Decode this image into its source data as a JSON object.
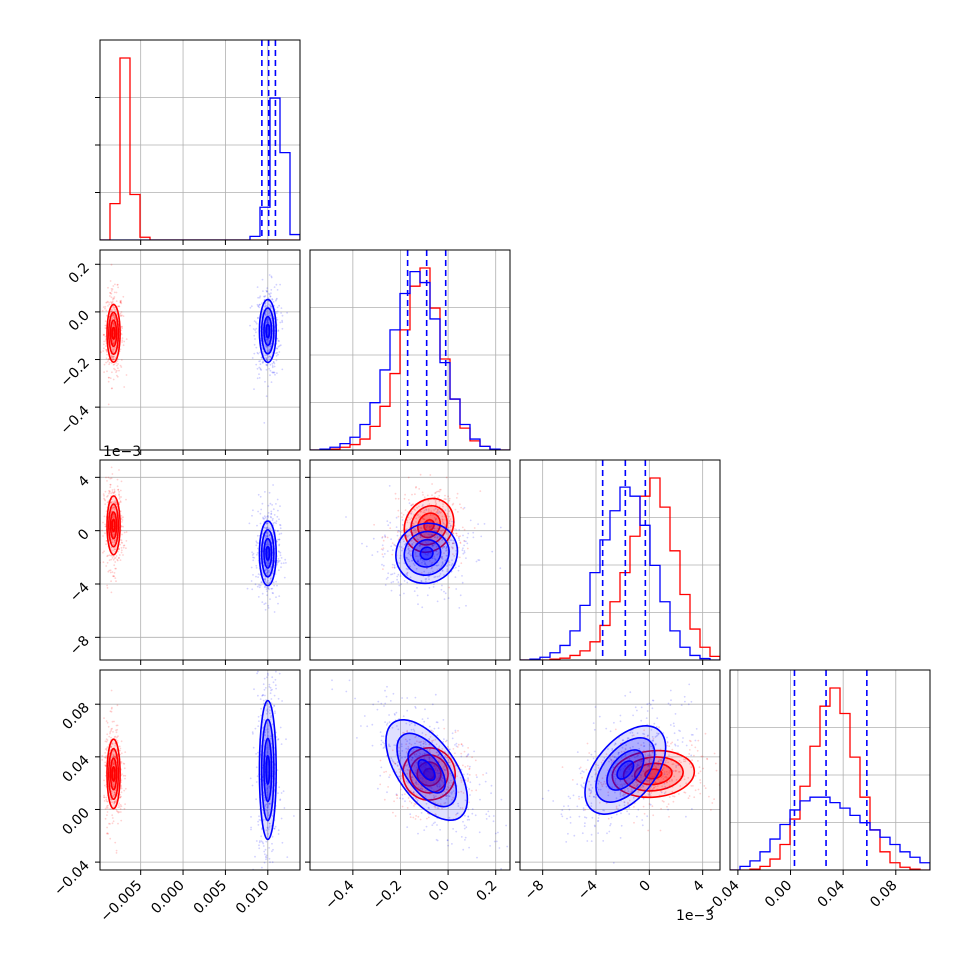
{
  "colors": {
    "red": "#ff0000",
    "blue": "#0000ff",
    "grid": "#b0b0b0"
  },
  "chart_data": {
    "type": "corner",
    "params": [
      {
        "range": [
          -0.0098,
          0.0138
        ],
        "ticks": [
          -0.005,
          0.0,
          0.005,
          0.01
        ],
        "tick_labels": [
          "−0.005",
          "0.000",
          "0.005",
          "0.010"
        ],
        "offset_text": ""
      },
      {
        "range": [
          -0.58,
          0.26
        ],
        "ticks": [
          -0.4,
          -0.2,
          0.0,
          0.2
        ],
        "tick_labels": [
          "−0.4",
          "−0.2",
          "0.0",
          "0.2"
        ],
        "offset_text": ""
      },
      {
        "range": [
          -9.7,
          5.3
        ],
        "ticks": [
          -8,
          -4,
          0,
          4
        ],
        "tick_labels": [
          "−8",
          "−4",
          "0",
          "4"
        ],
        "offset_text": "1e−3"
      },
      {
        "range": [
          -0.046,
          0.106
        ],
        "ticks": [
          -0.04,
          0.0,
          0.04,
          0.08
        ],
        "tick_labels": [
          "−0.04",
          "0.00",
          "0.04",
          "0.08"
        ],
        "offset_text": ""
      }
    ],
    "series": [
      {
        "color": "red",
        "hist": [
          [
            0.0,
            0.2,
            1.0,
            0.25,
            0.015,
            0.0,
            0.0,
            0.0,
            0.0,
            0.0,
            0.0,
            0.0,
            0.0,
            0.0,
            0.0,
            0.0,
            0.0,
            0.0,
            0.0,
            0.0
          ],
          [
            0.0,
            0.0,
            0.005,
            0.015,
            0.03,
            0.06,
            0.13,
            0.24,
            0.42,
            0.66,
            0.9,
            1.0,
            0.78,
            0.5,
            0.28,
            0.12,
            0.05,
            0.02,
            0.005,
            0.0
          ],
          [
            0.0,
            0.0,
            0.0,
            0.005,
            0.01,
            0.025,
            0.05,
            0.1,
            0.19,
            0.32,
            0.48,
            0.68,
            0.9,
            1.0,
            0.84,
            0.6,
            0.36,
            0.17,
            0.07,
            0.02
          ],
          [
            0.0,
            0.0,
            0.005,
            0.02,
            0.06,
            0.14,
            0.28,
            0.46,
            0.68,
            0.9,
            1.0,
            0.86,
            0.62,
            0.4,
            0.22,
            0.1,
            0.04,
            0.015,
            0.005,
            0.0
          ]
        ]
      },
      {
        "color": "blue",
        "hist": [
          [
            0.0,
            0.0,
            0.0,
            0.0,
            0.0,
            0.0,
            0.0,
            0.0,
            0.0,
            0.0,
            0.0,
            0.0,
            0.0,
            0.0,
            0.0,
            0.02,
            0.18,
            0.78,
            0.48,
            0.03
          ],
          [
            0.0,
            0.005,
            0.015,
            0.035,
            0.07,
            0.14,
            0.26,
            0.44,
            0.66,
            0.86,
            0.98,
            0.92,
            0.72,
            0.48,
            0.28,
            0.14,
            0.06,
            0.02,
            0.005,
            0.0
          ],
          [
            0.0,
            0.005,
            0.015,
            0.04,
            0.08,
            0.16,
            0.3,
            0.48,
            0.66,
            0.82,
            0.95,
            0.9,
            0.74,
            0.52,
            0.32,
            0.16,
            0.07,
            0.025,
            0.008,
            0.0
          ],
          [
            0.0,
            0.02,
            0.05,
            0.1,
            0.17,
            0.25,
            0.33,
            0.38,
            0.4,
            0.4,
            0.37,
            0.34,
            0.3,
            0.26,
            0.22,
            0.18,
            0.14,
            0.1,
            0.07,
            0.04
          ]
        ]
      }
    ],
    "quantiles_blue": [
      [
        0.0093,
        0.0101,
        0.0109
      ],
      [
        -0.17,
        -0.09,
        -0.01
      ],
      [
        -3.5,
        -1.8,
        -0.3
      ],
      [
        0.003,
        0.027,
        0.058
      ]
    ],
    "contour_centers": {
      "red": [
        {
          "x": -0.0082,
          "y": -0.09,
          "sx": 0.00035,
          "sy": 0.055,
          "rot": 0
        },
        {
          "x": -0.0082,
          "y": 0.4,
          "sx": 0.00035,
          "sy": 1.0,
          "rot": 0
        },
        {
          "x": -0.0082,
          "y": 0.027,
          "sx": 0.00035,
          "sy": 0.012,
          "rot": 0
        },
        {
          "x": -0.08,
          "y": 0.4,
          "sx": 0.045,
          "sy": 0.95,
          "rot": -30
        },
        {
          "x": -0.08,
          "y": 0.027,
          "sx": 0.05,
          "sy": 0.009,
          "rot": -30
        },
        {
          "x": 0.3,
          "y": 0.027,
          "sx": 1.4,
          "sy": 0.008,
          "rot": 5
        }
      ],
      "blue": [
        {
          "x": 0.01,
          "y": -0.08,
          "sx": 0.00045,
          "sy": 0.06,
          "rot": 0
        },
        {
          "x": 0.01,
          "y": -1.7,
          "sx": 0.00045,
          "sy": 1.1,
          "rot": 0
        },
        {
          "x": 0.01,
          "y": 0.03,
          "sx": 0.00045,
          "sy": 0.024,
          "rot": 0
        },
        {
          "x": -0.09,
          "y": -1.7,
          "sx": 0.06,
          "sy": 1.0,
          "rot": 35
        },
        {
          "x": -0.09,
          "y": 0.03,
          "sx": 0.055,
          "sy": 0.02,
          "rot": 35
        },
        {
          "x": -1.8,
          "y": 0.03,
          "sx": 1.0,
          "sy": 0.018,
          "rot": -40
        }
      ]
    }
  }
}
